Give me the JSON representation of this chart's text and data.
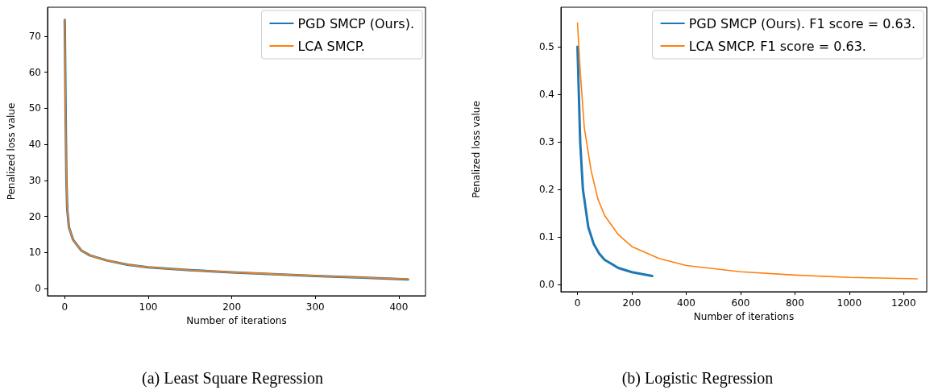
{
  "chart_data": [
    {
      "type": "line",
      "xlabel": "Number of iterations",
      "ylabel": "Penalized loss value",
      "annotations": [
        "(a) Least Square Regression"
      ],
      "legend": "top right",
      "grid": false,
      "xlim": [
        -20.6,
        432
      ],
      "xticks": [
        0,
        100,
        200,
        300,
        400
      ],
      "ylim": [
        -2,
        78
      ],
      "yticks": [
        0,
        10,
        20,
        30,
        40,
        50,
        60,
        70
      ],
      "series": [
        {
          "name": "PGD SMCP (Ours).",
          "color": "#1f77b4",
          "x": [
            0,
            1,
            2,
            3,
            5,
            10,
            20,
            30,
            50,
            75,
            100,
            150,
            200,
            250,
            300,
            350,
            411
          ],
          "values": [
            74.5,
            50,
            30,
            22,
            17,
            13.5,
            10.5,
            9.2,
            7.8,
            6.6,
            5.9,
            5.1,
            4.5,
            4,
            3.5,
            3.1,
            2.5
          ]
        },
        {
          "name": "LCA SMCP.",
          "color": "#ff7f0e",
          "x": [
            0,
            1,
            2,
            3,
            5,
            10,
            20,
            30,
            50,
            75,
            100,
            150,
            200,
            250,
            300,
            350,
            411
          ],
          "values": [
            74.5,
            50,
            30,
            22,
            17,
            13.5,
            10.5,
            9.2,
            7.8,
            6.6,
            5.9,
            5.1,
            4.5,
            4,
            3.5,
            3.1,
            2.6
          ]
        }
      ]
    },
    {
      "type": "line",
      "xlabel": "Number of iterations",
      "ylabel": "Penalized loss value",
      "annotations": [
        "(b) Logistic Regression"
      ],
      "legend": "top right",
      "grid": false,
      "xlim": [
        -61,
        1285
      ],
      "xticks": [
        0,
        200,
        400,
        600,
        800,
        1000,
        1200
      ],
      "ylim": [
        -0.015,
        0.583
      ],
      "yticks": [
        {
          "value": 0,
          "label": "0.0"
        },
        0.1,
        0.2,
        0.3,
        0.4,
        0.5
      ],
      "series": [
        {
          "name": "PGD SMCP (Ours). F1 score = 0.63.",
          "color": "#1f77b4",
          "x": [
            0,
            5,
            10,
            20,
            40,
            60,
            80,
            100,
            150,
            200,
            275
          ],
          "values": [
            0.5,
            0.4,
            0.3,
            0.2,
            0.12,
            0.085,
            0.065,
            0.052,
            0.035,
            0.026,
            0.018
          ]
        },
        {
          "name": "LCA SMCP. F1 score = 0.63.",
          "color": "#ff7f0e",
          "x": [
            0,
            10,
            25,
            50,
            75,
            100,
            150,
            200,
            300,
            400,
            600,
            800,
            1000,
            1250
          ],
          "values": [
            0.55,
            0.45,
            0.33,
            0.24,
            0.18,
            0.145,
            0.105,
            0.08,
            0.055,
            0.04,
            0.027,
            0.02,
            0.015,
            0.012
          ]
        }
      ]
    }
  ]
}
